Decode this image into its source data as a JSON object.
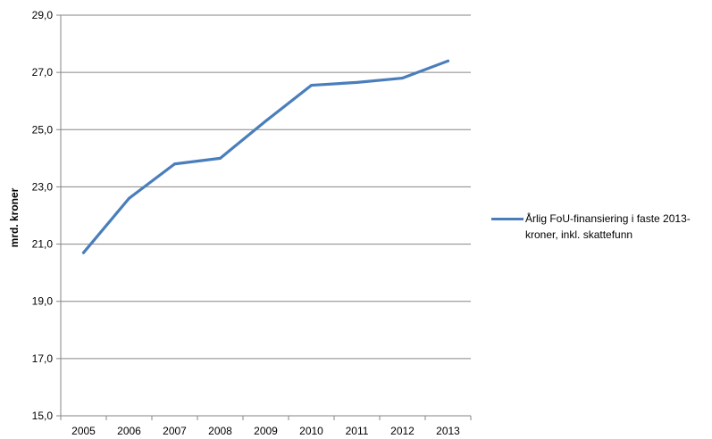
{
  "chart_data": {
    "type": "line",
    "categories": [
      "2005",
      "2006",
      "2007",
      "2008",
      "2009",
      "2010",
      "2011",
      "2012",
      "2013"
    ],
    "series": [
      {
        "name": "Årlig FoU-finansiering i faste 2013-kroner, inkl. skattefunn",
        "values": [
          20.7,
          22.6,
          23.8,
          24.0,
          25.3,
          26.55,
          26.65,
          26.8,
          27.4
        ]
      }
    ],
    "ylabel": "mrd. kroner",
    "yticks": [
      "15,0",
      "17,0",
      "19,0",
      "21,0",
      "23,0",
      "25,0",
      "27,0",
      "29,0"
    ],
    "ylim": [
      15,
      29
    ],
    "grid": true,
    "legend_position": "right",
    "line_color": "#4a7ebb"
  }
}
